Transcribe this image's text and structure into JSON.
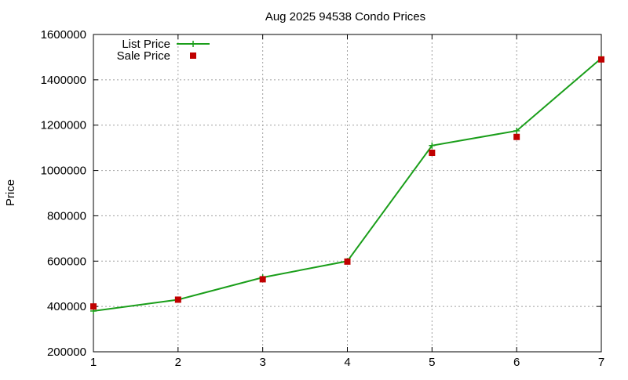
{
  "chart_data": {
    "type": "line",
    "title": "Aug 2025 94538 Condo Prices",
    "xlabel": "",
    "ylabel": "Price",
    "x": [
      1,
      2,
      3,
      4,
      5,
      6,
      7
    ],
    "xlim": [
      1,
      7
    ],
    "ylim": [
      200000,
      1600000
    ],
    "xticks": [
      1,
      2,
      3,
      4,
      5,
      6,
      7
    ],
    "yticks": [
      200000,
      400000,
      600000,
      800000,
      1000000,
      1200000,
      1400000,
      1600000
    ],
    "grid": true,
    "legend_position": "top-left",
    "series": [
      {
        "name": "List Price",
        "style": "line with cross markers",
        "color": "#1a9e1a",
        "values": [
          380000,
          430000,
          528000,
          600000,
          1110000,
          1175000,
          1495000
        ]
      },
      {
        "name": "Sale Price",
        "style": "square markers",
        "color": "#c00000",
        "values": [
          400000,
          430000,
          520000,
          598000,
          1078000,
          1148000,
          1490000
        ]
      }
    ]
  }
}
